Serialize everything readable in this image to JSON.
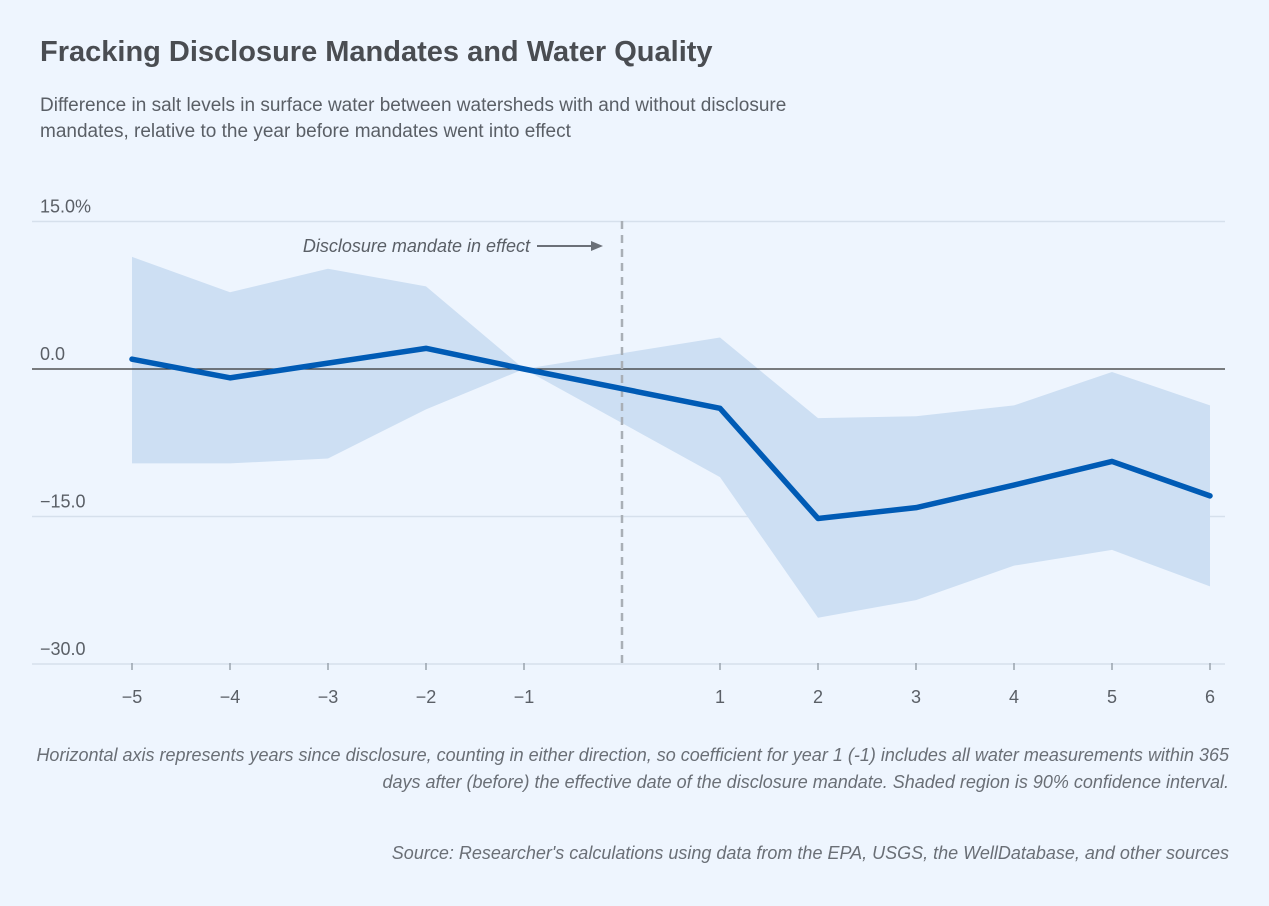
{
  "title": "Fracking Disclosure Mandates and Water Quality",
  "subtitle": "Difference in salt levels in surface water between watersheds with and without disclosure mandates, relative to the year before mandates went into effect",
  "note": "Horizontal axis represents years since disclosure, counting in either direction, so coefficient for year 1 (-1) includes all water measurements within 365 days after (before) the effective date of the disclosure mandate. Shaded region is 90% confidence interval.",
  "source": "Source: Researcher's calculations using data from the EPA, USGS, the WellDatabase, and other sources",
  "colors": {
    "background": "#eef5fe",
    "line": "#005bb5",
    "band": "#cddff3",
    "zero_line": "#333333",
    "grid": "#d6e0ec",
    "mandate_line": "#a9afb6"
  },
  "chart_data": {
    "type": "line",
    "xlabel": "",
    "ylabel": "",
    "xlim": [
      -5,
      6
    ],
    "ylim": [
      -30,
      15
    ],
    "x": [
      -5,
      -4,
      -3,
      -2,
      -1,
      1,
      2,
      3,
      4,
      5,
      6
    ],
    "x_tick_labels": [
      "−5",
      "−4",
      "−3",
      "−2",
      "−1",
      "1",
      "2",
      "3",
      "4",
      "5",
      "6"
    ],
    "y_ticks": [
      15,
      0,
      -15,
      -30
    ],
    "y_tick_labels": [
      "15.0%",
      "0.0",
      "−15.0",
      "−30.0"
    ],
    "grid": "horizontal",
    "series": [
      {
        "values": [
          1.0,
          -0.9,
          0.6,
          2.1,
          0.0,
          -4.0,
          -15.2,
          -14.1,
          -11.8,
          -9.4,
          -12.9
        ],
        "ci_upper": [
          11.4,
          7.8,
          10.2,
          8.4,
          0.0,
          3.2,
          -5.0,
          -4.8,
          -3.7,
          -0.3,
          -3.7
        ],
        "ci_lower": [
          -9.6,
          -9.6,
          -9.1,
          -4.1,
          0.0,
          -11.0,
          -25.3,
          -23.5,
          -20.0,
          -18.4,
          -22.1
        ]
      }
    ],
    "annotations": [
      {
        "text": "Disclosure mandate in effect",
        "x": 0,
        "style": "dashed vertical line with arrow"
      }
    ]
  }
}
